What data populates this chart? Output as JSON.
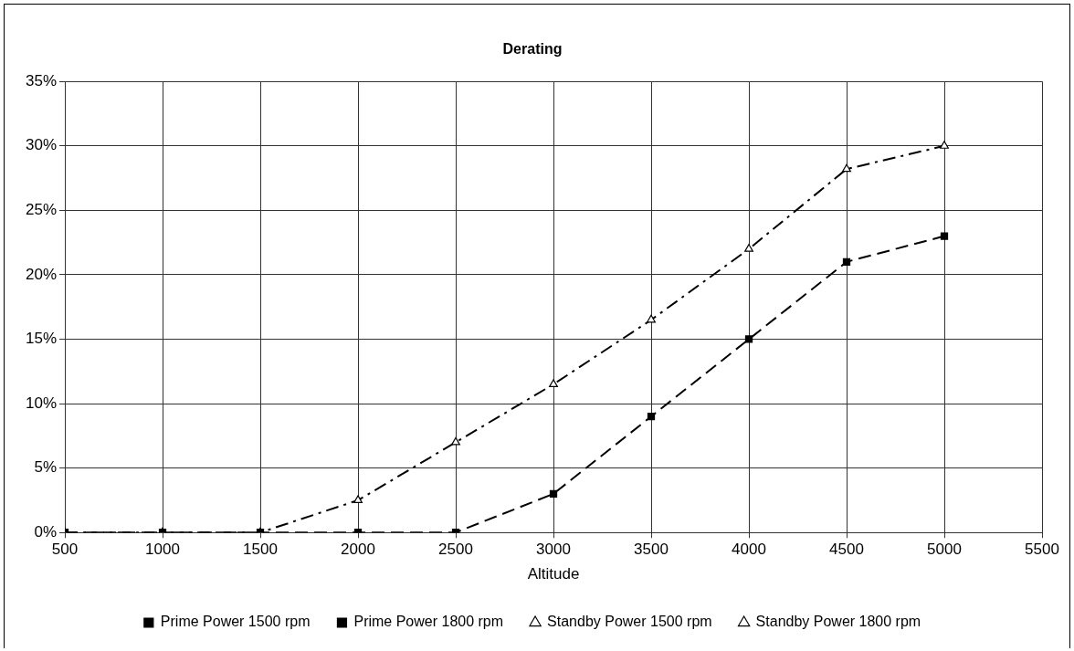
{
  "chart_data": {
    "type": "line",
    "title": "Derating",
    "xlabel": "Altitude",
    "x": [
      500,
      1000,
      1500,
      2000,
      2500,
      3000,
      3500,
      4000,
      4500,
      5000
    ],
    "xlim": [
      500,
      5500
    ],
    "xticks": [
      500,
      1000,
      1500,
      2000,
      2500,
      3000,
      3500,
      4000,
      4500,
      5000,
      5500
    ],
    "ylim": [
      0,
      35
    ],
    "yticks": [
      {
        "value": 0,
        "label": "0%"
      },
      {
        "value": 5,
        "label": "5%"
      },
      {
        "value": 10,
        "label": "10%"
      },
      {
        "value": 15,
        "label": "15%"
      },
      {
        "value": 20,
        "label": "20%"
      },
      {
        "value": 25,
        "label": "25%"
      },
      {
        "value": 30,
        "label": "30%"
      },
      {
        "value": 35,
        "label": "35%"
      }
    ],
    "grid": true,
    "legend": "bottom",
    "series": [
      {
        "name": "Prime Power 1500 rpm",
        "color": "#000000",
        "marker": "square",
        "line_style": "solid",
        "values": [
          null,
          null,
          null,
          null,
          null,
          null,
          null,
          null,
          null,
          null
        ]
      },
      {
        "name": "Prime Power 1800 rpm",
        "color": "#000000",
        "marker": "square",
        "line_style": "dashed",
        "values": [
          0,
          0,
          0,
          0,
          0,
          3,
          9,
          15,
          21,
          23
        ]
      },
      {
        "name": "Standby Power 1500 rpm",
        "color": "#000000",
        "marker": "triangle",
        "line_style": "dotted",
        "values": [
          null,
          null,
          null,
          null,
          null,
          null,
          null,
          null,
          null,
          null
        ]
      },
      {
        "name": "Standby Power 1800 rpm",
        "color": "#000000",
        "marker": "triangle",
        "line_style": "dashdot",
        "values": [
          0,
          0,
          0,
          2.5,
          7,
          11.5,
          16.5,
          22,
          28.2,
          30
        ]
      }
    ]
  }
}
